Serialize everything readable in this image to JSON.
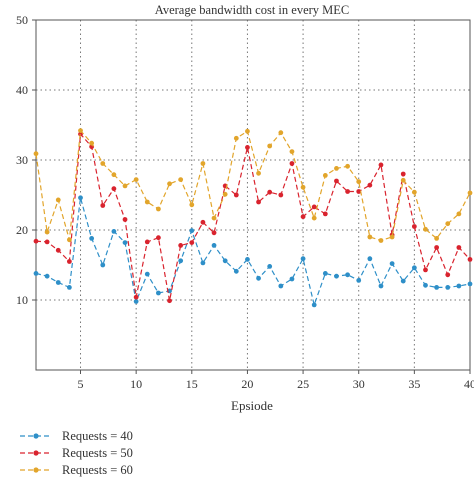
{
  "chart_data": {
    "type": "line",
    "title": "Average bandwidth cost in every MEC",
    "xlabel": "Epsiode",
    "ylabel": "",
    "xlim": [
      1,
      40
    ],
    "ylim": [
      0,
      50
    ],
    "x_ticks": [
      5,
      10,
      15,
      20,
      25,
      30,
      35,
      40
    ],
    "y_ticks": [
      10,
      20,
      30,
      40,
      50
    ],
    "grid": true,
    "grid_style": "dotted",
    "legend_position": "bottom-left",
    "x": [
      1,
      2,
      3,
      4,
      5,
      6,
      7,
      8,
      9,
      10,
      11,
      12,
      13,
      14,
      15,
      16,
      17,
      18,
      19,
      20,
      21,
      22,
      23,
      24,
      25,
      26,
      27,
      28,
      29,
      30,
      31,
      32,
      33,
      34,
      35,
      36,
      37,
      38,
      39,
      40
    ],
    "series": [
      {
        "name": "Requests = 40",
        "color": "#2e8fc8",
        "values": [
          13.8,
          13.4,
          12.5,
          11.8,
          24.6,
          18.8,
          15.0,
          19.8,
          18.2,
          9.8,
          13.7,
          11.0,
          11.3,
          15.6,
          19.9,
          15.3,
          17.8,
          15.6,
          14.1,
          15.8,
          13.1,
          14.8,
          12.0,
          13.0,
          15.9,
          9.3,
          13.8,
          13.4,
          13.6,
          12.8,
          15.9,
          12.0,
          15.2,
          12.7,
          14.6,
          12.1,
          11.8,
          11.8,
          12.0,
          12.3
        ]
      },
      {
        "name": "Requests = 50",
        "color": "#d9232e",
        "values": [
          18.4,
          18.3,
          17.1,
          15.5,
          33.7,
          31.9,
          23.5,
          25.9,
          21.5,
          10.4,
          18.3,
          18.9,
          9.9,
          17.8,
          18.2,
          21.1,
          19.6,
          26.3,
          25.0,
          31.8,
          24.0,
          25.4,
          25.0,
          29.5,
          21.9,
          23.3,
          22.3,
          27.0,
          25.5,
          25.5,
          26.4,
          29.3,
          19.3,
          28.0,
          20.5,
          14.3,
          17.5,
          13.6,
          17.5,
          15.8
        ]
      },
      {
        "name": "Requests = 60",
        "color": "#e2a52b",
        "values": [
          30.9,
          19.7,
          24.3,
          18.6,
          34.2,
          32.4,
          29.5,
          27.9,
          26.3,
          27.2,
          24.0,
          23.0,
          26.6,
          27.2,
          23.6,
          29.5,
          21.7,
          25.1,
          33.1,
          34.1,
          28.1,
          32.0,
          33.9,
          31.2,
          26.1,
          21.7,
          27.8,
          28.8,
          29.1,
          26.9,
          19.0,
          18.5,
          19.0,
          27.1,
          25.4,
          20.1,
          18.8,
          20.9,
          22.3,
          25.3
        ]
      }
    ]
  }
}
